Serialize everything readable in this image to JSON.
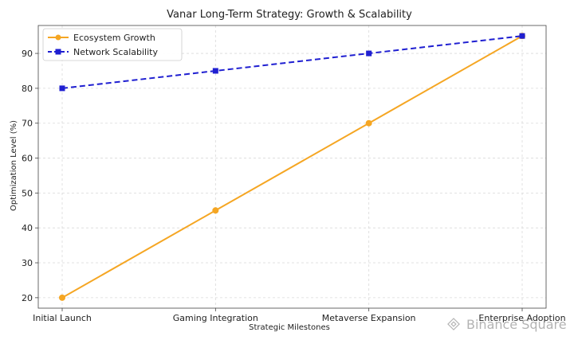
{
  "chart_data": {
    "type": "line",
    "title": "Vanar Long-Term Strategy: Growth & Scalability",
    "xlabel": "Strategic Milestones",
    "ylabel": "Optimization Level (%)",
    "categories": [
      "Initial Launch",
      "Gaming Integration",
      "Metaverse Expansion",
      "Enterprise Adoption"
    ],
    "ylim": [
      17,
      98
    ],
    "yticks": [
      20,
      30,
      40,
      50,
      60,
      70,
      80,
      90
    ],
    "grid": true,
    "legend_position": "top-left",
    "series": [
      {
        "name": "Ecosystem Growth",
        "values": [
          20,
          45,
          70,
          95
        ],
        "color": "#f5a623",
        "line_style": "solid",
        "marker": "circle"
      },
      {
        "name": "Network Scalability",
        "values": [
          80,
          85,
          90,
          95
        ],
        "color": "#1f1fd1",
        "line_style": "dashed",
        "marker": "square"
      }
    ]
  },
  "watermark": {
    "text": "Binance Square",
    "icon": "binance-logo-icon"
  }
}
